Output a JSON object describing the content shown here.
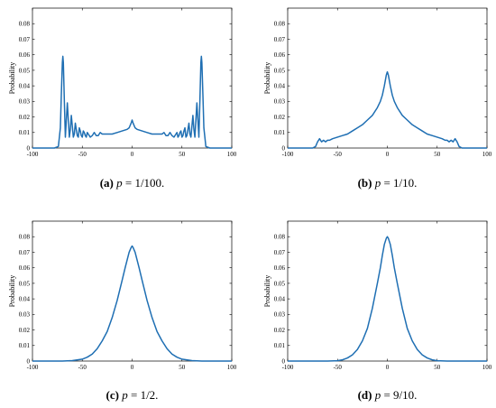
{
  "chart_data": [
    {
      "type": "line",
      "panel": "(a)",
      "caption": {
        "label": "(a)",
        "p_symbol": "p",
        "p_value": "= 1/100."
      },
      "ylabel": "Probability",
      "xlim": [
        -100,
        100
      ],
      "ylim": [
        0,
        0.09
      ],
      "xticks": [
        "-100",
        "-50",
        "0",
        "50",
        "100"
      ],
      "yticks": [
        "0",
        "0.01",
        "0.02",
        "0.03",
        "0.04",
        "0.05",
        "0.06",
        "0.07",
        "0.08"
      ],
      "x": [
        -100,
        -78,
        -74,
        -72,
        -71,
        -70,
        -69.5,
        -69,
        -68,
        -67,
        -66,
        -65,
        -64,
        -63,
        -62,
        -61,
        -60,
        -59,
        -58,
        -57,
        -56,
        -55,
        -54,
        -53,
        -52,
        -51,
        -50,
        -49,
        -48,
        -47,
        -46,
        -45,
        -44,
        -42,
        -40,
        -38,
        -36,
        -34,
        -32,
        -30,
        -28,
        -25,
        -20,
        -15,
        -10,
        -5,
        -3,
        -1,
        0,
        1,
        3,
        5,
        10,
        15,
        20,
        25,
        28,
        30,
        32,
        34,
        36,
        38,
        40,
        42,
        44,
        45,
        46,
        47,
        48,
        49,
        50,
        51,
        52,
        53,
        54,
        55,
        56,
        57,
        58,
        59,
        60,
        61,
        62,
        63,
        64,
        65,
        66,
        67,
        68,
        69,
        69.5,
        70,
        71,
        72,
        74,
        78,
        100
      ],
      "y": [
        0,
        0,
        0.001,
        0.013,
        0.035,
        0.055,
        0.059,
        0.055,
        0.03,
        0.007,
        0.018,
        0.029,
        0.018,
        0.007,
        0.012,
        0.021,
        0.014,
        0.007,
        0.009,
        0.016,
        0.012,
        0.008,
        0.007,
        0.013,
        0.011,
        0.008,
        0.007,
        0.011,
        0.01,
        0.008,
        0.007,
        0.01,
        0.009,
        0.007,
        0.008,
        0.01,
        0.008,
        0.008,
        0.01,
        0.009,
        0.009,
        0.009,
        0.009,
        0.01,
        0.011,
        0.012,
        0.013,
        0.016,
        0.018,
        0.016,
        0.013,
        0.012,
        0.011,
        0.01,
        0.009,
        0.009,
        0.009,
        0.009,
        0.01,
        0.008,
        0.008,
        0.01,
        0.008,
        0.007,
        0.009,
        0.01,
        0.007,
        0.008,
        0.01,
        0.011,
        0.007,
        0.008,
        0.011,
        0.013,
        0.007,
        0.008,
        0.012,
        0.016,
        0.009,
        0.007,
        0.014,
        0.021,
        0.012,
        0.007,
        0.018,
        0.029,
        0.018,
        0.007,
        0.03,
        0.055,
        0.059,
        0.055,
        0.035,
        0.013,
        0.001,
        0,
        0
      ]
    },
    {
      "type": "line",
      "panel": "(b)",
      "caption": {
        "label": "(b)",
        "p_symbol": "p",
        "p_value": "= 1/10."
      },
      "ylabel": "Probability",
      "xlim": [
        -100,
        100
      ],
      "ylim": [
        0,
        0.09
      ],
      "xticks": [
        "-100",
        "-50",
        "0",
        "50",
        "100"
      ],
      "yticks": [
        "0",
        "0.01",
        "0.02",
        "0.03",
        "0.04",
        "0.05",
        "0.06",
        "0.07",
        "0.08"
      ],
      "x": [
        -100,
        -75,
        -72,
        -70,
        -68,
        -66,
        -64,
        -62,
        -60,
        -58,
        -55,
        -50,
        -45,
        -40,
        -35,
        -30,
        -25,
        -20,
        -15,
        -10,
        -7,
        -5,
        -3,
        -1,
        0,
        1,
        3,
        5,
        7,
        10,
        15,
        20,
        25,
        30,
        35,
        40,
        45,
        50,
        55,
        58,
        60,
        62,
        64,
        66,
        68,
        70,
        72,
        75,
        100
      ],
      "y": [
        0,
        0,
        0.001,
        0.004,
        0.006,
        0.004,
        0.005,
        0.004,
        0.005,
        0.005,
        0.006,
        0.007,
        0.008,
        0.009,
        0.011,
        0.013,
        0.015,
        0.018,
        0.021,
        0.026,
        0.03,
        0.034,
        0.04,
        0.047,
        0.049,
        0.047,
        0.04,
        0.034,
        0.03,
        0.026,
        0.021,
        0.018,
        0.015,
        0.013,
        0.011,
        0.009,
        0.008,
        0.007,
        0.006,
        0.005,
        0.005,
        0.004,
        0.005,
        0.004,
        0.006,
        0.004,
        0.001,
        0,
        0
      ]
    },
    {
      "type": "line",
      "panel": "(c)",
      "caption": {
        "label": "(c)",
        "p_symbol": "p",
        "p_value": "= 1/2."
      },
      "ylabel": "Probability",
      "xlim": [
        -100,
        100
      ],
      "ylim": [
        0,
        0.09
      ],
      "xticks": [
        "-100",
        "-50",
        "0",
        "50",
        "100"
      ],
      "yticks": [
        "0",
        "0.01",
        "0.02",
        "0.03",
        "0.04",
        "0.05",
        "0.06",
        "0.07",
        "0.08"
      ],
      "x": [
        -100,
        -70,
        -60,
        -50,
        -45,
        -40,
        -35,
        -30,
        -25,
        -20,
        -15,
        -10,
        -7,
        -5,
        -3,
        -1,
        0,
        1,
        3,
        5,
        7,
        10,
        15,
        20,
        25,
        30,
        35,
        40,
        45,
        50,
        60,
        70,
        100
      ],
      "y": [
        0,
        0,
        0.0003,
        0.0012,
        0.0025,
        0.0045,
        0.008,
        0.013,
        0.019,
        0.028,
        0.039,
        0.052,
        0.06,
        0.065,
        0.07,
        0.073,
        0.074,
        0.073,
        0.07,
        0.065,
        0.06,
        0.052,
        0.039,
        0.028,
        0.019,
        0.013,
        0.008,
        0.0045,
        0.0025,
        0.0012,
        0.0003,
        0,
        0
      ]
    },
    {
      "type": "line",
      "panel": "(d)",
      "caption": {
        "label": "(d)",
        "p_symbol": "p",
        "p_value": "= 9/10."
      },
      "ylabel": "Probability",
      "xlim": [
        -100,
        100
      ],
      "ylim": [
        0,
        0.09
      ],
      "xticks": [
        "-100",
        "-50",
        "0",
        "50",
        "100"
      ],
      "yticks": [
        "0",
        "0.01",
        "0.02",
        "0.03",
        "0.04",
        "0.05",
        "0.06",
        "0.07",
        "0.08"
      ],
      "x": [
        -100,
        -60,
        -50,
        -45,
        -40,
        -35,
        -30,
        -25,
        -20,
        -15,
        -10,
        -7,
        -5,
        -3,
        -1,
        0,
        1,
        3,
        5,
        7,
        10,
        15,
        20,
        25,
        30,
        35,
        40,
        45,
        50,
        60,
        100
      ],
      "y": [
        0,
        0,
        0.0002,
        0.0008,
        0.002,
        0.004,
        0.0075,
        0.013,
        0.021,
        0.034,
        0.05,
        0.06,
        0.068,
        0.075,
        0.079,
        0.08,
        0.079,
        0.075,
        0.068,
        0.06,
        0.05,
        0.034,
        0.021,
        0.013,
        0.0075,
        0.004,
        0.002,
        0.0008,
        0.0002,
        0,
        0
      ]
    }
  ]
}
